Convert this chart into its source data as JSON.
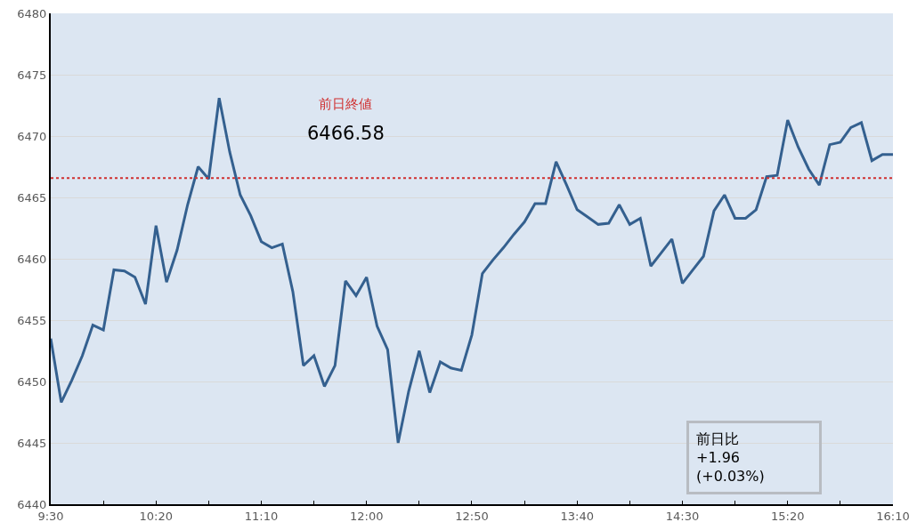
{
  "chart_data": {
    "type": "line",
    "x": [
      9.5,
      9.5833,
      9.6667,
      9.75,
      9.8333,
      9.9167,
      10.0,
      10.0833,
      10.1667,
      10.25,
      10.3333,
      10.4167,
      10.5,
      10.5833,
      10.6667,
      10.75,
      10.8333,
      10.9167,
      11.0,
      11.0833,
      11.1667,
      11.25,
      11.3333,
      11.4167,
      11.5,
      11.5833,
      11.6667,
      11.75,
      11.8333,
      11.9167,
      12.0,
      12.0833,
      12.1667,
      12.25,
      12.3333,
      12.4167,
      12.5,
      12.5833,
      12.6667,
      12.75,
      12.8333,
      12.9167,
      13.0,
      13.0833,
      13.1667,
      13.25,
      13.3333,
      13.4167,
      13.5,
      13.5833,
      13.6667,
      13.75,
      13.8333,
      13.9167,
      14.0,
      14.0833,
      14.1667,
      14.25,
      14.3333,
      14.4167,
      14.5,
      14.5833,
      14.6667,
      14.75,
      14.8333,
      14.9167,
      15.0,
      15.0833,
      15.1667,
      15.25,
      15.3333,
      15.4167,
      15.5,
      15.5833,
      15.6667,
      15.75,
      15.8333,
      15.9167,
      16.0,
      16.0833,
      16.1667
    ],
    "series": [
      {
        "color": "#34608f",
        "values": [
          6453.5,
          6448.3,
          6450.1,
          6452.1,
          6454.6,
          6454.2,
          6459.1,
          6459.0,
          6458.5,
          6456.3,
          6462.7,
          6458.1,
          6460.7,
          6464.4,
          6467.5,
          6466.5,
          6473.1,
          6468.7,
          6465.2,
          6463.5,
          6461.4,
          6460.9,
          6461.2,
          6457.3,
          6451.3,
          6452.1,
          6449.6,
          6451.3,
          6458.2,
          6457.0,
          6458.5,
          6454.5,
          6452.6,
          6445.0,
          6449.2,
          6452.5,
          6449.1,
          6451.6,
          6451.1,
          6450.9,
          6453.8,
          6458.8,
          6459.9,
          6460.9,
          6462.0,
          6463.0,
          6464.5,
          6464.5,
          6467.9,
          6466.0,
          6464.0,
          6463.4,
          6462.8,
          6462.9,
          6464.4,
          6462.8,
          6463.3,
          6459.4,
          6460.5,
          6461.6,
          6458.0,
          6459.1,
          6460.2,
          6463.9,
          6465.2,
          6463.3,
          6463.3,
          6464.0,
          6466.7,
          6466.8,
          6471.3,
          6469.1,
          6467.3,
          6466.0,
          6469.3,
          6469.5,
          6470.7,
          6471.1,
          6468.0,
          6468.5,
          6468.5
        ]
      }
    ],
    "xlim": [
      9.5,
      16.1667
    ],
    "xticks": [
      {
        "value": 9.5,
        "label": "9:30"
      },
      {
        "value": 9.9167,
        "label": null
      },
      {
        "value": 10.3333,
        "label": "10:20"
      },
      {
        "value": 10.75,
        "label": null
      },
      {
        "value": 11.1667,
        "label": "11:10"
      },
      {
        "value": 11.5833,
        "label": null
      },
      {
        "value": 12.0,
        "label": "12:00"
      },
      {
        "value": 12.4167,
        "label": null
      },
      {
        "value": 12.8333,
        "label": "12:50"
      },
      {
        "value": 13.25,
        "label": null
      },
      {
        "value": 13.6667,
        "label": "13:40"
      },
      {
        "value": 14.0833,
        "label": null
      },
      {
        "value": 14.5,
        "label": "14:30"
      },
      {
        "value": 14.9167,
        "label": null
      },
      {
        "value": 15.3333,
        "label": "15:20"
      },
      {
        "value": 15.75,
        "label": null
      },
      {
        "value": 16.1667,
        "label": "16:10"
      }
    ],
    "ylim": [
      6440,
      6480
    ],
    "yticks": [
      6440,
      6445,
      6450,
      6455,
      6460,
      6465,
      6470,
      6475,
      6480
    ],
    "grid": "y",
    "line_style": "solid",
    "ref_lines": [
      {
        "axis": "y",
        "value": 6466.58,
        "label": "前日終値\n6466.58",
        "color": "#d03030",
        "line_style": "dotted"
      }
    ],
    "annotations": [
      "前日比\n+1.96\n(+0.03%)"
    ]
  }
}
